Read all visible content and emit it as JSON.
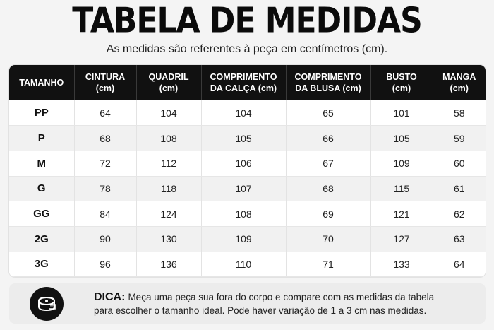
{
  "title": "TABELA DE MEDIDAS",
  "subtitle": "As medidas são referentes à peça em centímetros (cm).",
  "table": {
    "headers": [
      {
        "line1": "TAMANHO",
        "line2": ""
      },
      {
        "line1": "CINTURA",
        "line2": "(cm)"
      },
      {
        "line1": "QUADRIL",
        "line2": "(cm)"
      },
      {
        "line1": "COMPRIMENTO",
        "line2": "DA CALÇA (cm)"
      },
      {
        "line1": "COMPRIMENTO",
        "line2": "DA BLUSA (cm)"
      },
      {
        "line1": "BUSTO",
        "line2": "(cm)"
      },
      {
        "line1": "MANGA",
        "line2": "(cm)"
      }
    ],
    "rows": [
      [
        "PP",
        "64",
        "104",
        "104",
        "65",
        "101",
        "58"
      ],
      [
        "P",
        "68",
        "108",
        "105",
        "66",
        "105",
        "59"
      ],
      [
        "M",
        "72",
        "112",
        "106",
        "67",
        "109",
        "60"
      ],
      [
        "G",
        "78",
        "118",
        "107",
        "68",
        "115",
        "61"
      ],
      [
        "GG",
        "84",
        "124",
        "108",
        "69",
        "121",
        "62"
      ],
      [
        "2G",
        "90",
        "130",
        "109",
        "70",
        "127",
        "63"
      ],
      [
        "3G",
        "96",
        "136",
        "110",
        "71",
        "133",
        "64"
      ]
    ]
  },
  "tip": {
    "label": "DICA:",
    "line1": "Meça uma peça sua fora do corpo e compare com as medidas da tabela",
    "line2": "para escolher o tamanho ideal. Pode haver variação de 1 a 3 cm nas medidas.",
    "icon": "measuring-tape-icon"
  }
}
